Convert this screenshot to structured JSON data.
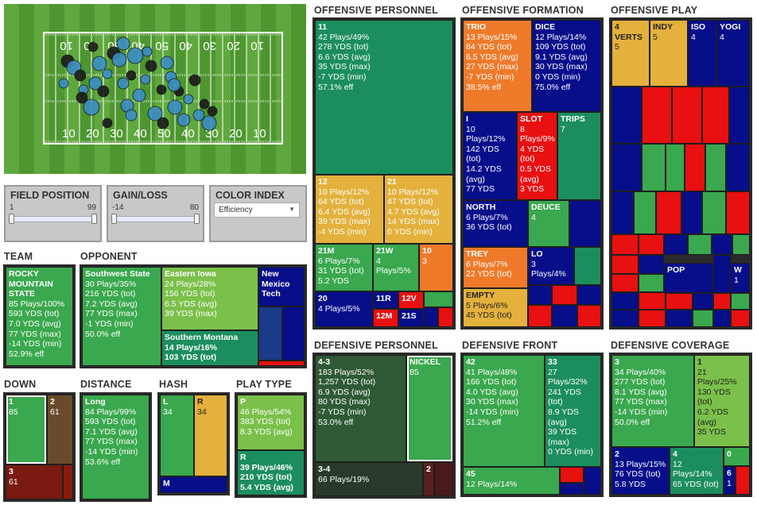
{
  "field": {
    "yard_labels_top": [
      "10",
      "20",
      "30",
      "40",
      "50",
      "40",
      "30",
      "20",
      "10"
    ],
    "yard_labels_bottom": [
      "10",
      "20",
      "30",
      "40",
      "50",
      "40",
      "30",
      "20",
      "10"
    ],
    "colors": {
      "grass_light": "#5fa83d",
      "grass_dark": "#4e9630",
      "line": "#ffffff",
      "dot_blue": "#3b8dc4",
      "dot_dark": "#1a1a1a"
    }
  },
  "controls": {
    "field_position": {
      "label": "FIELD POSITION",
      "min": "1",
      "max": "99"
    },
    "gain_loss": {
      "label": "GAIN/LOSS",
      "min": "-14",
      "max": "80"
    },
    "color_index": {
      "label": "COLOR INDEX",
      "selected": "Efficiency"
    }
  },
  "titles": {
    "team": "TEAM",
    "opponent": "OPPONENT",
    "down": "DOWN",
    "distance": "DISTANCE",
    "hash": "HASH",
    "play_type": "PLAY TYPE",
    "off_personnel": "OFFENSIVE PERSONNEL",
    "off_formation": "OFFENSIVE FORMATION",
    "off_play": "OFFENSIVE PLAY",
    "def_personnel": "DEFENSIVE PERSONNEL",
    "def_front": "DEFENSIVE FRONT",
    "def_coverage": "DEFENSIVE COVERAGE"
  },
  "colors": {
    "green": "#3aa84e",
    "dgreen": "#1c8e5e",
    "lgreen": "#7bc04a",
    "gold": "#e3b13c",
    "orange": "#ee7a2a",
    "red": "#e81010",
    "navy": "#060e8a",
    "brown": "#6a4a2a",
    "dkred": "#7a1a10"
  },
  "team": {
    "name": "ROCKY MOUNTAIN STATE",
    "lines": [
      "85 Plays/100%",
      "593 YDS (tot)",
      "7.0 YDS (avg)",
      "77 YDS (max)",
      "-14 YDS (min)",
      "52.9% eff"
    ]
  },
  "opponent": {
    "swst": {
      "name": "Southwest State",
      "lines": [
        "30 Plays/35%",
        "216 YDS (tot)",
        "7.2 YDS (avg)",
        "77 YDS (max)",
        "-1 YDS (min)",
        "50.0% eff"
      ]
    },
    "eiowa": {
      "name": "Eastern Iowa",
      "lines": [
        "24 Plays/28%",
        "156 YDS (tot)",
        "6.5 YDS (avg)",
        "39 YDS (max)"
      ]
    },
    "smont": {
      "name": "Southern Montana",
      "lines": [
        "14 Plays/16%",
        "103 YDS (tot)"
      ]
    },
    "nmex": {
      "name": "New Mexico Tech"
    }
  },
  "down": {
    "d1": {
      "name": "1",
      "lines": [
        "85"
      ]
    },
    "d2": {
      "name": "2",
      "lines": [
        "61"
      ]
    },
    "d3": {
      "name": "3",
      "lines": [
        "61"
      ]
    }
  },
  "distance": {
    "long": {
      "name": "Long",
      "lines": [
        "84 Plays/99%",
        "593 YDS (tot)",
        "7.1 YDS (avg)",
        "77 YDS (max)",
        "-14 YDS (min)",
        "53.6% eff"
      ]
    }
  },
  "hash": {
    "l": {
      "name": "L",
      "lines": [
        "34"
      ]
    },
    "r": {
      "name": "R",
      "lines": [
        "34"
      ]
    },
    "m": {
      "name": "M"
    }
  },
  "play_type": {
    "p": {
      "name": "P",
      "lines": [
        "46 Plays/54%",
        "383 YDS (tot)",
        "8.3 YDS (avg)"
      ]
    },
    "r": {
      "name": "R",
      "lines": [
        "39 Plays/46%",
        "210 YDS (tot)",
        "5.4 YDS (avg)"
      ]
    }
  },
  "off_personnel": {
    "p11": {
      "name": "11",
      "lines": [
        "42 Plays/49%",
        "278 YDS (tot)",
        "6.6 YDS (avg)",
        "35 YDS (max)",
        "-7 YDS (min)",
        "57.1% eff"
      ]
    },
    "p12": {
      "name": "12",
      "lines": [
        "10 Plays/12%",
        "64 YDS (tot)",
        "6.4 YDS (avg)",
        "39 YDS (max)",
        "-4 YDS (min)"
      ]
    },
    "p21": {
      "name": "21",
      "lines": [
        "10 Plays/12%",
        "47 YDS (tot)",
        "4.7 YDS (avg)",
        "14 YDS (max)",
        "0 YDS (min)"
      ]
    },
    "p21m": {
      "name": "21M",
      "lines": [
        "6 Plays/7%",
        "31 YDS (tot)",
        "5.2 YDS"
      ]
    },
    "p21w": {
      "name": "21W",
      "lines": [
        "4",
        "Plays/5%"
      ]
    },
    "p10": {
      "name": "10",
      "lines": [
        "3"
      ]
    },
    "p20": {
      "name": "20",
      "lines": [
        "4 Plays/5%"
      ]
    },
    "p11r": {
      "name": "11R"
    },
    "p12v": {
      "name": "12V"
    },
    "p12m": {
      "name": "12M"
    },
    "p21s": {
      "name": "21S"
    }
  },
  "off_formation": {
    "trio": {
      "name": "TRIO",
      "lines": [
        "13 Plays/15%",
        "84 YDS (tot)",
        "6.5 YDS (avg)",
        "27 YDS (max)",
        "-7 YDS (min)",
        "38.5% eff"
      ]
    },
    "dice": {
      "name": "DICE",
      "lines": [
        "12 Plays/14%",
        "109 YDS (tot)",
        "9.1 YDS (avg)",
        "30 YDS (max)",
        "0 YDS (min)",
        "75.0% eff"
      ]
    },
    "i": {
      "name": "I",
      "lines": [
        "10",
        "Plays/12%",
        "142 YDS",
        "(tot)",
        "14.2 YDS",
        "(avg)",
        "77 YDS"
      ]
    },
    "slot": {
      "name": "SLOT",
      "lines": [
        "8",
        "Plays/9%",
        "4 YDS",
        "(tot)",
        "0.5 YDS",
        "(avg)",
        "3 YDS"
      ]
    },
    "trips": {
      "name": "TRIPS",
      "lines": [
        "7"
      ]
    },
    "north": {
      "name": "NORTH",
      "lines": [
        "6 Plays/7%",
        "36 YDS (tot)"
      ]
    },
    "deuce": {
      "name": "DEUCE",
      "lines": [
        "4"
      ]
    },
    "trey": {
      "name": "TREY",
      "lines": [
        "6 Plays/7%",
        "22 YDS (tot)"
      ]
    },
    "lo": {
      "name": "LO",
      "lines": [
        "3",
        "Plays/4%"
      ]
    },
    "empty": {
      "name": "EMPTY",
      "lines": [
        "5 Plays/6%",
        "45 YDS (tot)"
      ]
    }
  },
  "off_play": {
    "verts": {
      "name": "4 VERTS",
      "lines": [
        "5"
      ]
    },
    "indy": {
      "name": "INDY",
      "lines": [
        "5"
      ]
    },
    "iso": {
      "name": "ISO",
      "lines": [
        "4"
      ]
    },
    "yogi": {
      "name": "YOGI",
      "lines": [
        "4"
      ]
    },
    "pop": {
      "name": "POP"
    },
    "w": {
      "name": "W",
      "lines": [
        "1"
      ]
    }
  },
  "def_personnel": {
    "d43": {
      "name": "4-3",
      "lines": [
        "183 Plays/52%",
        "1,257 YDS (tot)",
        "6.9 YDS (avg)",
        "80 YDS (max)",
        "-7 YDS (min)",
        "53.0% eff"
      ]
    },
    "nickel": {
      "name": "NICKEL",
      "lines": [
        "85"
      ]
    },
    "d34": {
      "name": "3-4",
      "lines": [
        "66 Plays/19%"
      ]
    },
    "d2": {
      "name": "2"
    }
  },
  "def_front": {
    "f42": {
      "name": "42",
      "lines": [
        "41 Plays/48%",
        "166 YDS (tot)",
        "4.0 YDS (avg)",
        "30 YDS (max)",
        "-14 YDS (min)",
        "51.2% eff"
      ]
    },
    "f33": {
      "name": "33",
      "lines": [
        "27",
        "Plays/32%",
        "241 YDS",
        "(tot)",
        "8.9 YDS",
        "(avg)",
        "39 YDS",
        "(max)",
        "0 YDS (min)"
      ]
    },
    "f45": {
      "name": "45",
      "lines": [
        "12 Plays/14%"
      ]
    }
  },
  "def_coverage": {
    "c3": {
      "name": "3",
      "lines": [
        "34 Plays/40%",
        "277 YDS (tot)",
        "8.1 YDS (avg)",
        "77 YDS (max)",
        "-14 YDS (min)",
        "50.0% eff"
      ]
    },
    "c1": {
      "name": "1",
      "lines": [
        "21",
        "Plays/25%",
        "130 YDS",
        "(tot)",
        "6.2 YDS",
        "(avg)",
        "35 YDS"
      ]
    },
    "c2": {
      "name": "2",
      "lines": [
        "13 Plays/15%",
        "76 YDS (tot)",
        "5.8 YDS"
      ]
    },
    "c4": {
      "name": "4",
      "lines": [
        "12",
        "Plays/14%",
        "65 YDS (tot)"
      ]
    },
    "c0": {
      "name": "0"
    },
    "c6": {
      "name": "6",
      "lines": [
        "1"
      ]
    }
  }
}
